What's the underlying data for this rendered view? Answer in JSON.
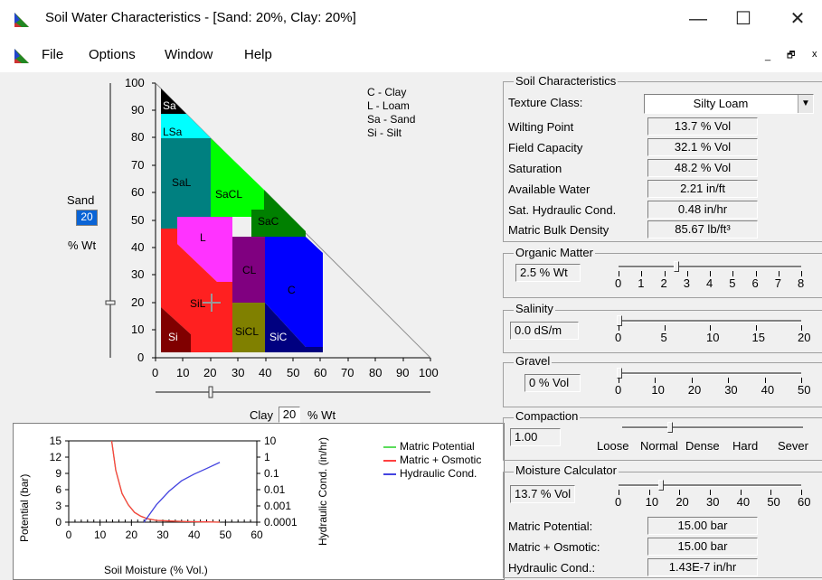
{
  "window": {
    "title": "Soil Water Characteristics  - [Sand: 20%, Clay: 20%]",
    "minimize_glyph": "—",
    "maximize_glyph": "☐",
    "close_glyph": "✕",
    "mdi_controls": [
      "_",
      "🗗",
      "x"
    ]
  },
  "menu": {
    "items": [
      "File",
      "Options",
      "Window",
      "Help"
    ]
  },
  "triangle": {
    "y_ticks": [
      "100",
      "90",
      "80",
      "70",
      "60",
      "50",
      "40",
      "30",
      "20",
      "10",
      "0"
    ],
    "x_ticks": [
      "0",
      "10",
      "20",
      "30",
      "40",
      "50",
      "60",
      "70",
      "80",
      "90",
      "100"
    ],
    "regions": {
      "Sa": "Sa",
      "LSa": "LSa",
      "SaL": "SaL",
      "SaCL": "SaCL",
      "SaC": "SaC",
      "L": "L",
      "CL": "CL",
      "C": "C",
      "SiL": "SiL",
      "SiCL": "SiCL",
      "SiC": "SiC",
      "Si": "Si"
    },
    "legend": [
      "C - Clay",
      "L  - Loam",
      "Sa - Sand",
      "Si - Silt"
    ],
    "sand_label": "Sand",
    "sand_value": "20",
    "sand_unit": "% Wt",
    "clay_label": "Clay",
    "clay_value": "20",
    "clay_unit": "% Wt",
    "colors": {
      "Sa": "#000000",
      "LSa": "#00ffff",
      "SaL": "#008080",
      "SaCL": "#00ff00",
      "SaC": "#008000",
      "L": "#ff00ff",
      "CL": "#800080",
      "C": "#0000ff",
      "SiL": "#ff0000",
      "SiCL": "#808000",
      "SiC": "#000080",
      "Si": "#800000"
    }
  },
  "soil_characteristics": {
    "title": "Soil Characteristics",
    "texture_label": "Texture Class:",
    "texture_value": "Silty Loam",
    "rows": [
      {
        "label": "Wilting Point",
        "value": "13.7 % Vol"
      },
      {
        "label": "Field Capacity",
        "value": "32.1 % Vol"
      },
      {
        "label": "Saturation",
        "value": "48.2 % Vol"
      },
      {
        "label": "Available Water",
        "value": "2.21 in/ft"
      },
      {
        "label": "Sat. Hydraulic Cond.",
        "value": "0.48 in/hr"
      },
      {
        "label": "Matric Bulk Density",
        "value": "85.67 lb/ft³"
      }
    ]
  },
  "organic_matter": {
    "title": "Organic Matter",
    "value": "2.5 % Wt",
    "ticks": [
      "0",
      "1",
      "2",
      "3",
      "4",
      "5",
      "6",
      "7",
      "8"
    ],
    "level": 2.5
  },
  "salinity": {
    "title": "Salinity",
    "value": "0.0 dS/m",
    "ticks": [
      "0",
      "5",
      "10",
      "15",
      "20"
    ],
    "level": 0
  },
  "gravel": {
    "title": "Gravel",
    "value": "0 % Vol",
    "ticks": [
      "0",
      "10",
      "20",
      "30",
      "40",
      "50"
    ],
    "level": 0
  },
  "compaction": {
    "title": "Compaction",
    "value": "1.00",
    "ticks": [
      "Loose",
      "Normal",
      "Dense",
      "Hard",
      "Sever"
    ],
    "level": 1
  },
  "moisture_calc": {
    "title": "Moisture Calculator",
    "value": "13.7 % Vol",
    "ticks": [
      "0",
      "10",
      "20",
      "30",
      "40",
      "50",
      "60"
    ],
    "level": 13.7,
    "rows": [
      {
        "label": "Matric Potential:",
        "value": "15.00 bar"
      },
      {
        "label": "Matric + Osmotic:",
        "value": "15.00 bar"
      },
      {
        "label": "Hydraulic Cond.:",
        "value": "1.43E-7 in/hr"
      }
    ]
  },
  "chart_data": {
    "type": "line",
    "xlabel": "Soil Moisture (% Vol.)",
    "ylabel": "Potential (bar)",
    "y2label": "Hydraulic Cond. (in/hr)",
    "x_ticks": [
      "0",
      "10",
      "20",
      "30",
      "40",
      "50",
      "60"
    ],
    "y_ticks": [
      "15",
      "12",
      "9",
      "6",
      "3",
      "0"
    ],
    "y2_ticks": [
      "10",
      "1",
      "0.1",
      "0.01",
      "0.001",
      "0.0001"
    ],
    "xlim": [
      0,
      60
    ],
    "ylim": [
      0,
      15
    ],
    "y2lim_log": [
      -4,
      1
    ],
    "legend": [
      "Matric Potential",
      "Matric + Osmotic",
      "Hydraulic Cond."
    ],
    "series": [
      {
        "name": "Matric Potential",
        "color": "#5bdc5b",
        "axis": "left",
        "x": [
          13.7,
          15,
          17,
          19,
          21,
          23,
          25,
          28,
          32,
          38,
          44,
          48.2
        ],
        "y": [
          15,
          9.6,
          5.3,
          3.2,
          1.8,
          1.1,
          0.65,
          0.33,
          0.22,
          0.1,
          0.05,
          0
        ]
      },
      {
        "name": "Matric + Osmotic",
        "color": "#ff4040",
        "axis": "left",
        "x": [
          13.7,
          15,
          17,
          19,
          21,
          23,
          25,
          28,
          32,
          38,
          44,
          48.2
        ],
        "y": [
          15,
          9.6,
          5.3,
          3.2,
          1.8,
          1.1,
          0.65,
          0.33,
          0.22,
          0.1,
          0.05,
          0
        ]
      },
      {
        "name": "Hydraulic Cond.",
        "color": "#4444e0",
        "axis": "right",
        "x": [
          24,
          28,
          32,
          36,
          40,
          44,
          48.2
        ],
        "y": [
          0.0001,
          0.0012,
          0.008,
          0.035,
          0.09,
          0.2,
          0.48
        ]
      }
    ]
  }
}
